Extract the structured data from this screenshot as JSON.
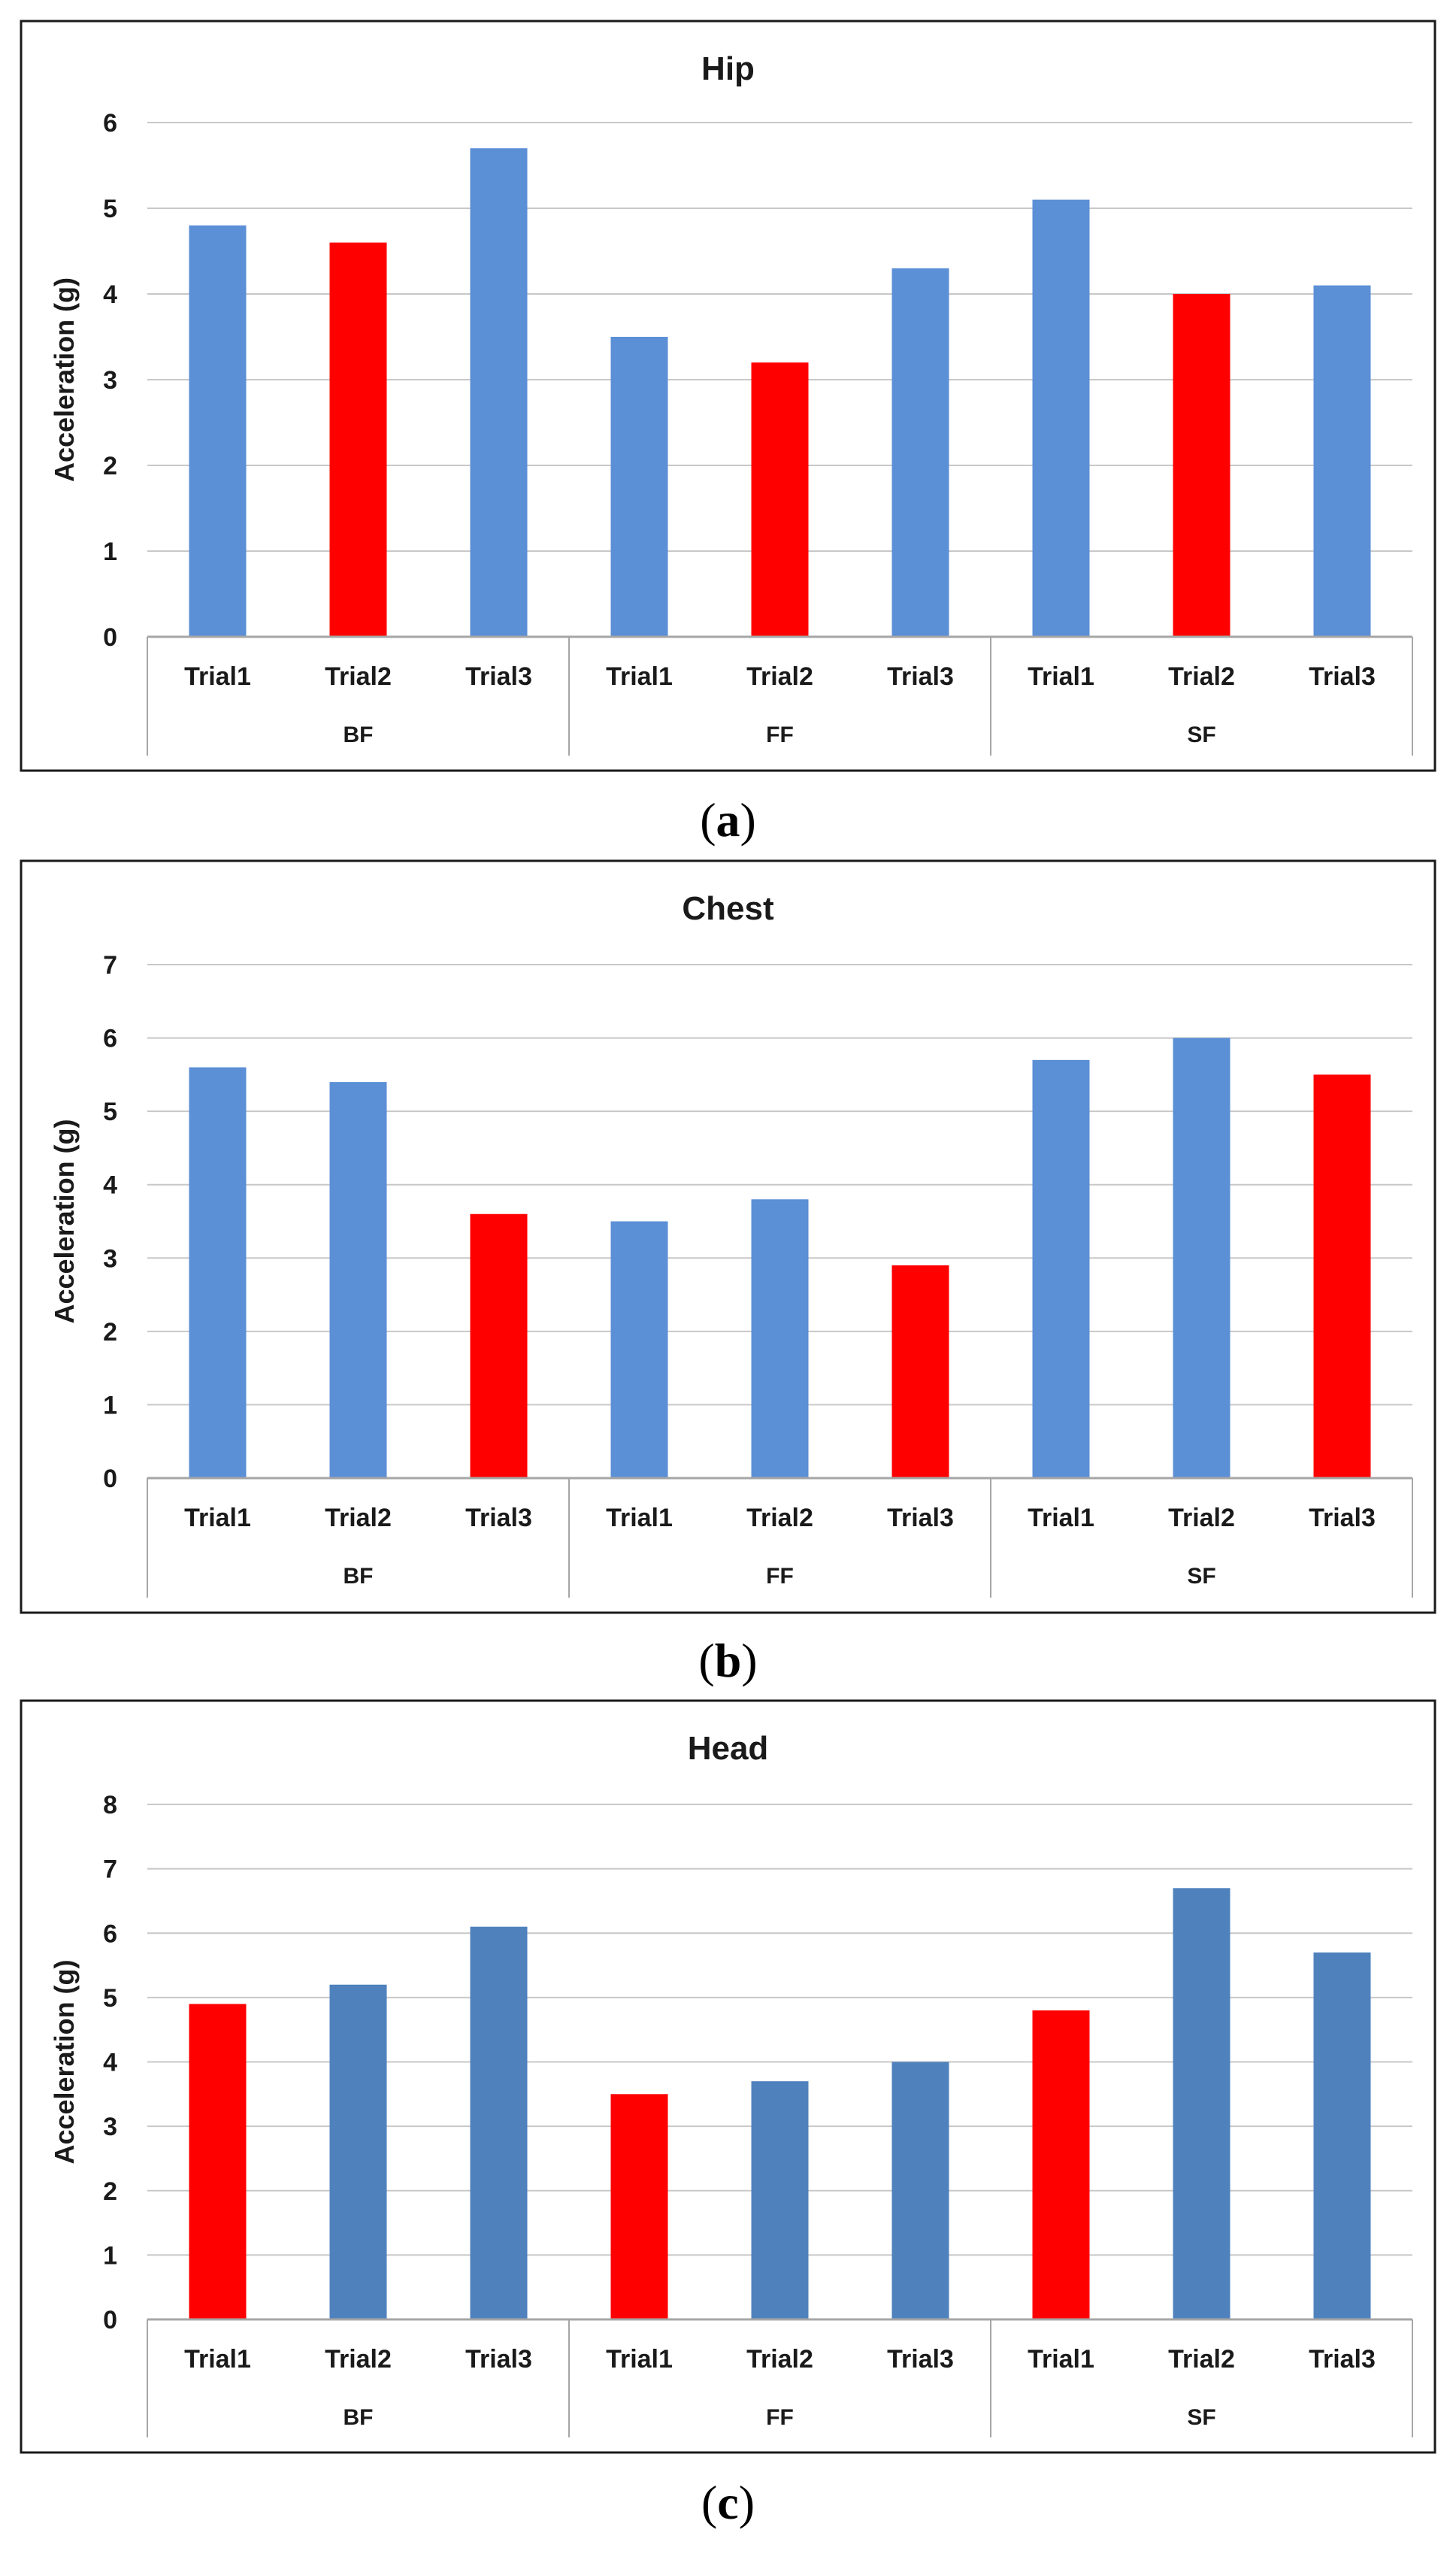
{
  "colors": {
    "bar_default": "#5b8fd6",
    "bar_highlight": "#ff0000",
    "bar_default_head": "#4f81bd",
    "grid": "#c8c8c8",
    "frame": "#1a1a1a",
    "axis_line": "#a6a6a6"
  },
  "chart_data": [
    {
      "type": "bar",
      "title": "Hip",
      "ylabel": "Acceleration (g)",
      "xlabel": "",
      "ylim": [
        0,
        6
      ],
      "yticks": [
        "0",
        "1",
        "2",
        "3",
        "4",
        "5",
        "6"
      ],
      "groups": [
        "BF",
        "FF",
        "SF"
      ],
      "categories": [
        "Trial1",
        "Trial2",
        "Trial3",
        "Trial1",
        "Trial2",
        "Trial3",
        "Trial1",
        "Trial2",
        "Trial3"
      ],
      "values": [
        4.8,
        4.6,
        5.7,
        3.5,
        3.2,
        4.3,
        5.1,
        4.0,
        4.1
      ],
      "highlight": [
        false,
        true,
        false,
        false,
        true,
        false,
        false,
        true,
        false
      ],
      "grid": true,
      "caption": {
        "open": "(",
        "letter": "a",
        "close": ")"
      }
    },
    {
      "type": "bar",
      "title": "Chest",
      "ylabel": "Acceleration (g)",
      "xlabel": "",
      "ylim": [
        0,
        7
      ],
      "yticks": [
        "0",
        "1",
        "2",
        "3",
        "4",
        "5",
        "6",
        "7"
      ],
      "groups": [
        "BF",
        "FF",
        "SF"
      ],
      "categories": [
        "Trial1",
        "Trial2",
        "Trial3",
        "Trial1",
        "Trial2",
        "Trial3",
        "Trial1",
        "Trial2",
        "Trial3"
      ],
      "values": [
        5.6,
        5.4,
        3.6,
        3.5,
        3.8,
        2.9,
        5.7,
        6.0,
        5.5
      ],
      "highlight": [
        false,
        false,
        true,
        false,
        false,
        true,
        false,
        false,
        true
      ],
      "grid": true,
      "caption": {
        "open": "(",
        "letter": "b",
        "close": ")"
      }
    },
    {
      "type": "bar",
      "title": "Head",
      "ylabel": "Acceleration (g)",
      "xlabel": "",
      "ylim": [
        0,
        8
      ],
      "yticks": [
        "0",
        "1",
        "2",
        "3",
        "4",
        "5",
        "6",
        "7",
        "8"
      ],
      "groups": [
        "BF",
        "FF",
        "SF"
      ],
      "categories": [
        "Trial1",
        "Trial2",
        "Trial3",
        "Trial1",
        "Trial2",
        "Trial3",
        "Trial1",
        "Trial2",
        "Trial3"
      ],
      "values": [
        4.9,
        5.2,
        6.1,
        3.5,
        3.7,
        4.0,
        4.8,
        6.7,
        5.7
      ],
      "highlight": [
        true,
        false,
        false,
        true,
        false,
        false,
        true,
        false,
        false
      ],
      "grid": true,
      "caption": {
        "open": "(",
        "letter": "c",
        "close": ")"
      }
    }
  ]
}
